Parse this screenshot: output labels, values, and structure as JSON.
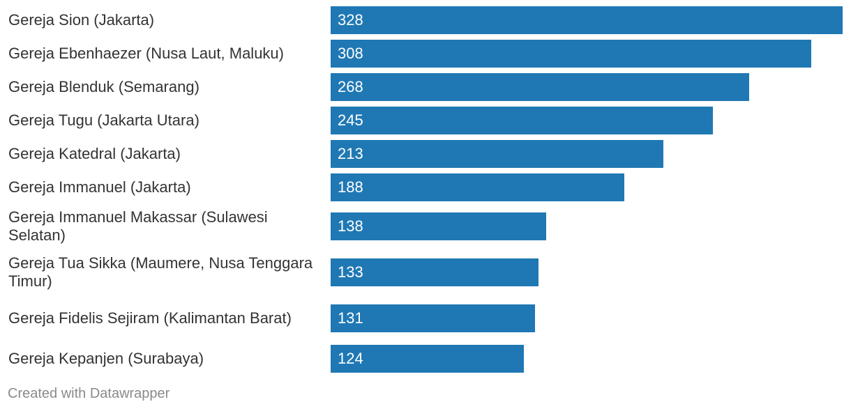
{
  "chart_data": {
    "type": "bar",
    "orientation": "horizontal",
    "categories": [
      "Gereja Sion (Jakarta)",
      "Gereja Ebenhaezer (Nusa Laut, Maluku)",
      "Gereja Blenduk (Semarang)",
      "Gereja Tugu (Jakarta Utara)",
      "Gereja Katedral (Jakarta)",
      "Gereja Immanuel (Jakarta)",
      "Gereja Immanuel Makassar (Sulawesi Selatan)",
      "Gereja Tua Sikka (Maumere, Nusa Tenggara Timur)",
      "Gereja Fidelis Sejiram (Kalimantan Barat)",
      "Gereja Kepanjen (Surabaya)"
    ],
    "values": [
      328,
      308,
      268,
      245,
      213,
      188,
      138,
      133,
      131,
      124
    ],
    "xlim": [
      0,
      328
    ],
    "grid": false,
    "legend": "none",
    "value_labels": "inside-left",
    "bar_color": "#1f78b4",
    "title": "",
    "xlabel": "",
    "ylabel": ""
  },
  "footer": {
    "credit": "Created with Datawrapper"
  },
  "colors": {
    "bar": "#1f78b4",
    "label_text": "#333333",
    "value_text": "#ffffff",
    "footer_text": "#8a8a8a"
  }
}
